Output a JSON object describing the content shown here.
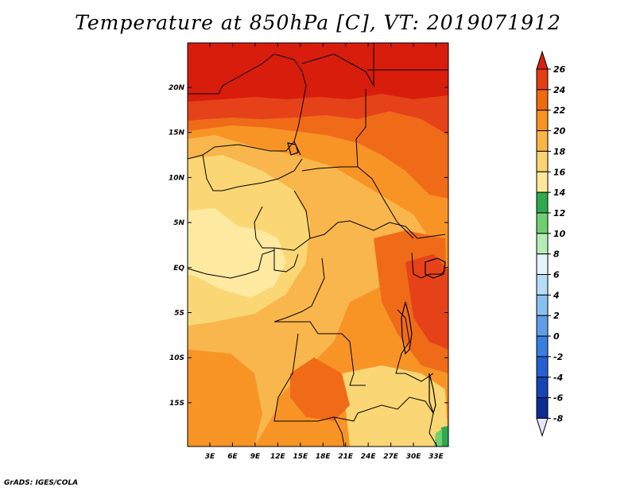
{
  "title": "Temperature at 850hPa [C], VT: 2019071912",
  "credit": "GrADS: IGES/COLA",
  "map": {
    "region": "Central Africa",
    "lon_ticks": [
      "3E",
      "6E",
      "9E",
      "12E",
      "15E",
      "18E",
      "21E",
      "24E",
      "27E",
      "30E",
      "33E"
    ],
    "lat_ticks": [
      "20N",
      "15N",
      "10N",
      "5N",
      "EQ",
      "5S",
      "10S",
      "15S"
    ]
  },
  "colorbar": {
    "labels": [
      "26",
      "24",
      "22",
      "20",
      "18",
      "16",
      "14",
      "12",
      "10",
      "8",
      "6",
      "4",
      "2",
      "0",
      "-2",
      "-4",
      "-6",
      "-8"
    ],
    "colors": [
      "#d82010",
      "#e63d12",
      "#f06a10",
      "#f89320",
      "#f9b545",
      "#fbd470",
      "#fde89a",
      "#2fa94f",
      "#6fcf6f",
      "#b5ebb5",
      "#e3f4fb",
      "#b7dcf7",
      "#8ac0f0",
      "#5f9ee6",
      "#3a7ee0",
      "#245fd3",
      "#1544b5",
      "#0d2d95",
      "#0a0f60"
    ]
  },
  "field_colors": {
    "c26": "#d81d0d",
    "c24": "#e6421a",
    "c22": "#f06b18",
    "c20": "#f89426",
    "c18": "#f9b64c",
    "c16": "#fbd674",
    "c14": "#fde9a0",
    "c10": "#2fa94f"
  }
}
